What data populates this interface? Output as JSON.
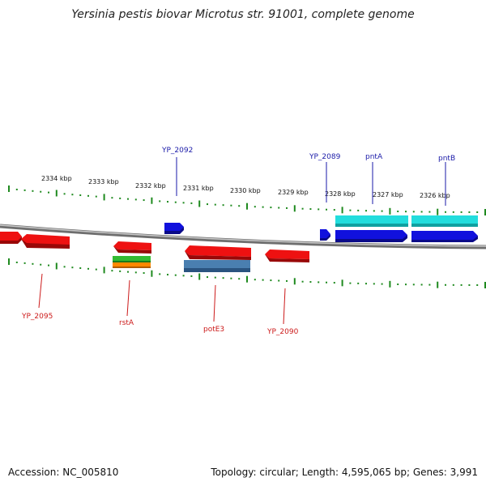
{
  "title": "Yersinia pestis biovar Microtus str. 91001, complete genome",
  "footer": {
    "accession": "Accession: NC_005810",
    "summary": "Topology: circular; Length: 4,595,065 bp; Genes: 3,991"
  },
  "colors": {
    "backbone": "#8a8a8a",
    "tick": "#1f8a1f",
    "forward_label": "#1a1aa8",
    "reverse_label": "#cc1a1a",
    "gene_red": "#ee1111",
    "gene_blue": "#1111dd",
    "gene_cyan": "#22dddd",
    "gene_steel": "#4a7fb0",
    "gene_green": "#33bb33",
    "gene_orange": "#ff8800"
  },
  "scale_labels": [
    "2334 kbp",
    "2333 kbp",
    "2332 kbp",
    "2331 kbp",
    "2330 kbp",
    "2329 kbp",
    "2328 kbp",
    "2327 kbp",
    "2326 kbp"
  ],
  "forward_gene_labels": [
    "YP_2092",
    "YP_2089",
    "pntA",
    "pntB"
  ],
  "reverse_gene_labels": [
    "YP_2095",
    "rstA",
    "potE3",
    "YP_2090"
  ]
}
